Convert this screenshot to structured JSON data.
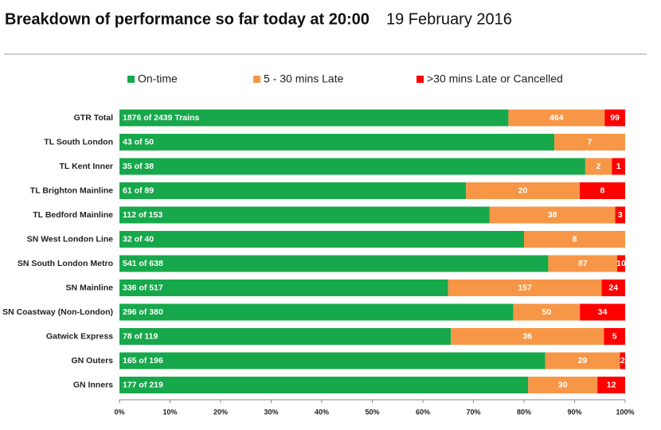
{
  "chart_data": {
    "type": "stacked-bar-100",
    "title": "Breakdown of performance so far today at 20:00",
    "subtitle": "19 February 2016",
    "orientation": "horizontal",
    "categories": [
      "GTR Total",
      "TL South London",
      "TL Kent Inner",
      "TL Brighton Mainline",
      "TL Bedford Mainline",
      "SN West London Line",
      "SN South London Metro",
      "SN Mainline",
      "SN Coastway (Non-London)",
      "Gatwick Express",
      "GN Outers",
      "GN Inners"
    ],
    "series": [
      {
        "name": "On-time",
        "color": "#17a84b",
        "values": [
          1876,
          43,
          35,
          61,
          112,
          32,
          541,
          336,
          296,
          78,
          165,
          177
        ],
        "value_labels": [
          "1876 of 2439 Trains",
          "43 of 50",
          "35 of 38",
          "61 of 89",
          "112 of 153",
          "32 of 40",
          "541 of 638",
          "336 of 517",
          "296 of 380",
          "78 of 119",
          "165 of 196",
          "177 of 219"
        ]
      },
      {
        "name": "5 - 30 mins Late",
        "color": "#f79646",
        "values": [
          464,
          7,
          2,
          20,
          38,
          8,
          87,
          157,
          50,
          36,
          29,
          30
        ]
      },
      {
        "name": ">30 mins Late or Cancelled",
        "color": "#ff0000",
        "values": [
          99,
          null,
          1,
          8,
          3,
          null,
          10,
          24,
          34,
          5,
          2,
          12
        ]
      }
    ],
    "xlim": [
      0,
      100
    ],
    "xticks": [
      {
        "value": 0,
        "label": "0%"
      },
      {
        "value": 10,
        "label": "10%"
      },
      {
        "value": 20,
        "label": "20%"
      },
      {
        "value": 30,
        "label": "30%"
      },
      {
        "value": 40,
        "label": "40%"
      },
      {
        "value": 50,
        "label": "50%"
      },
      {
        "value": 60,
        "label": "60%"
      },
      {
        "value": 70,
        "label": "70%"
      },
      {
        "value": 80,
        "label": "80%"
      },
      {
        "value": 90,
        "label": "90%"
      },
      {
        "value": 100,
        "label": "100%"
      }
    ],
    "legend": "top"
  }
}
